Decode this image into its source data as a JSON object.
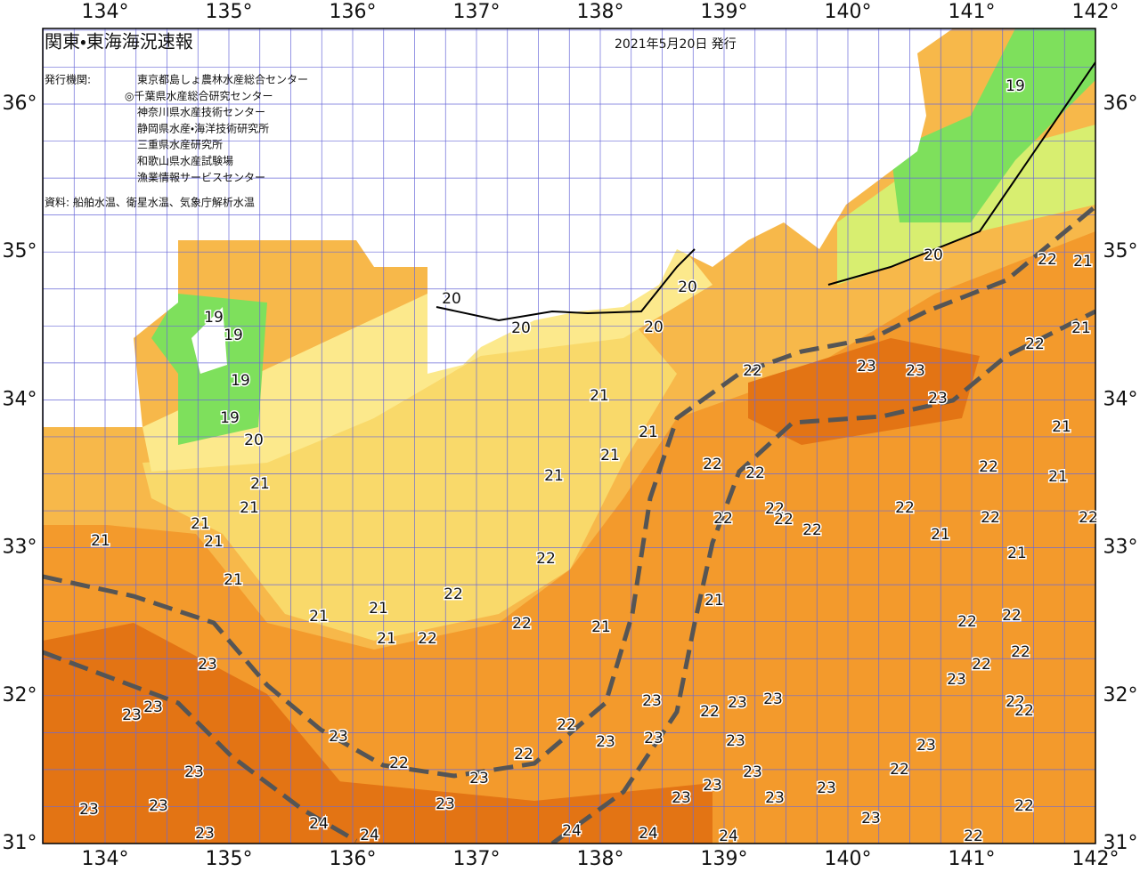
{
  "header": {
    "title": "関東・東海海況速報",
    "date": "2021年5月20日 発行"
  },
  "issuers": {
    "label": "発行機関:",
    "list": [
      "東京都島しょ農林水産総合センター",
      "◎千葉県水産総合研究センター",
      "神奈川県水産技術センター",
      "静岡県水産・海洋技術研究所",
      "三重県水産研究所",
      "和歌山県水産試験場",
      "漁業情報サービスセンター"
    ]
  },
  "source": "資料: 船舶水温、衛星水温、気象庁解析水温",
  "lon_ticks": [
    "134°",
    "135°",
    "136°",
    "137°",
    "138°",
    "139°",
    "140°",
    "141°",
    "142°"
  ],
  "lat_ticks": [
    "36°",
    "35°",
    "34°",
    "33°",
    "32°",
    "31°"
  ],
  "contour_labels": [
    19,
    20,
    22,
    21,
    20,
    20,
    20,
    20,
    19,
    19,
    19,
    19,
    20,
    21,
    22,
    22,
    23,
    23,
    23,
    21,
    21,
    21,
    21,
    22,
    22,
    22,
    21,
    21,
    21,
    21,
    22,
    22,
    22,
    22,
    22,
    22,
    22,
    21,
    21,
    21,
    21,
    22,
    21,
    21,
    22,
    21,
    21,
    21,
    22,
    21,
    21,
    22,
    22,
    22,
    22,
    22,
    23,
    23,
    23,
    23,
    23,
    23,
    23,
    22,
    22,
    22,
    22,
    23,
    23,
    23,
    23,
    23,
    22,
    22,
    22,
    23,
    23,
    23,
    23,
    23,
    23,
    23,
    23,
    23,
    23,
    22,
    23,
    24,
    24,
    24,
    24,
    24,
    23,
    22
  ]
}
